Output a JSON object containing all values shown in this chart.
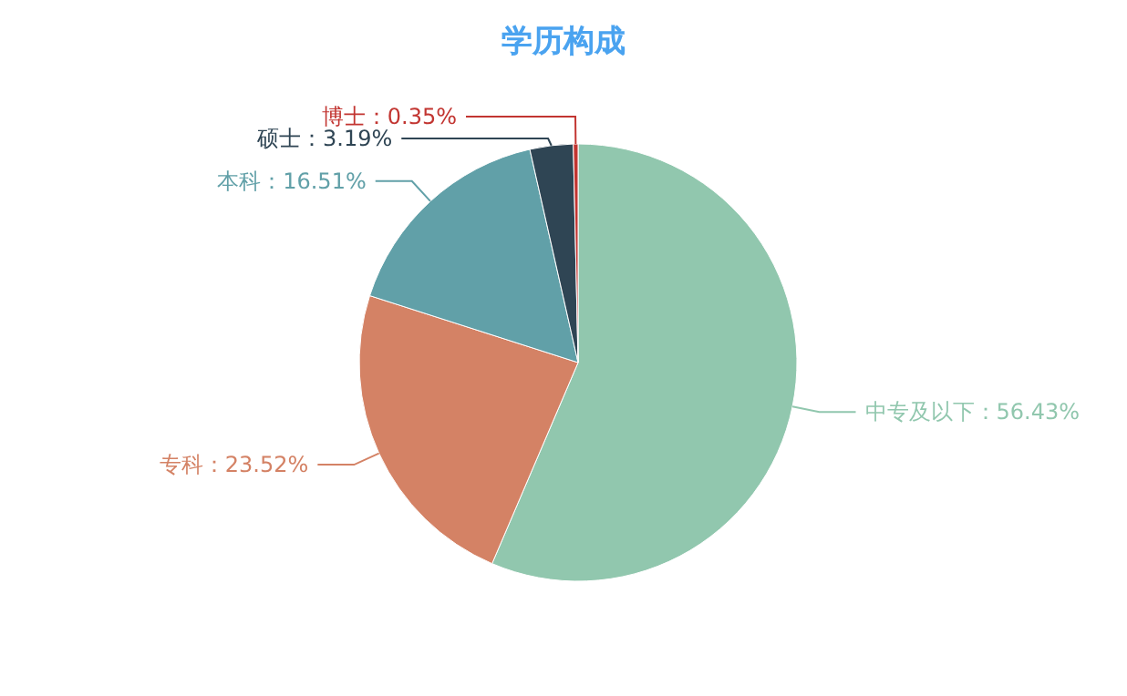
{
  "chart_data": {
    "type": "pie",
    "title": "学历构成",
    "categories": [
      "中专及以下",
      "专科",
      "本科",
      "硕士",
      "博士"
    ],
    "values": [
      56.43,
      23.52,
      16.51,
      3.19,
      0.35
    ],
    "value_labels": [
      "56.43%",
      "23.52%",
      "16.51%",
      "3.19%",
      "0.35%"
    ],
    "colors": [
      "#91c7ae",
      "#d48265",
      "#61a0a8",
      "#2f4554",
      "#c23531"
    ]
  }
}
